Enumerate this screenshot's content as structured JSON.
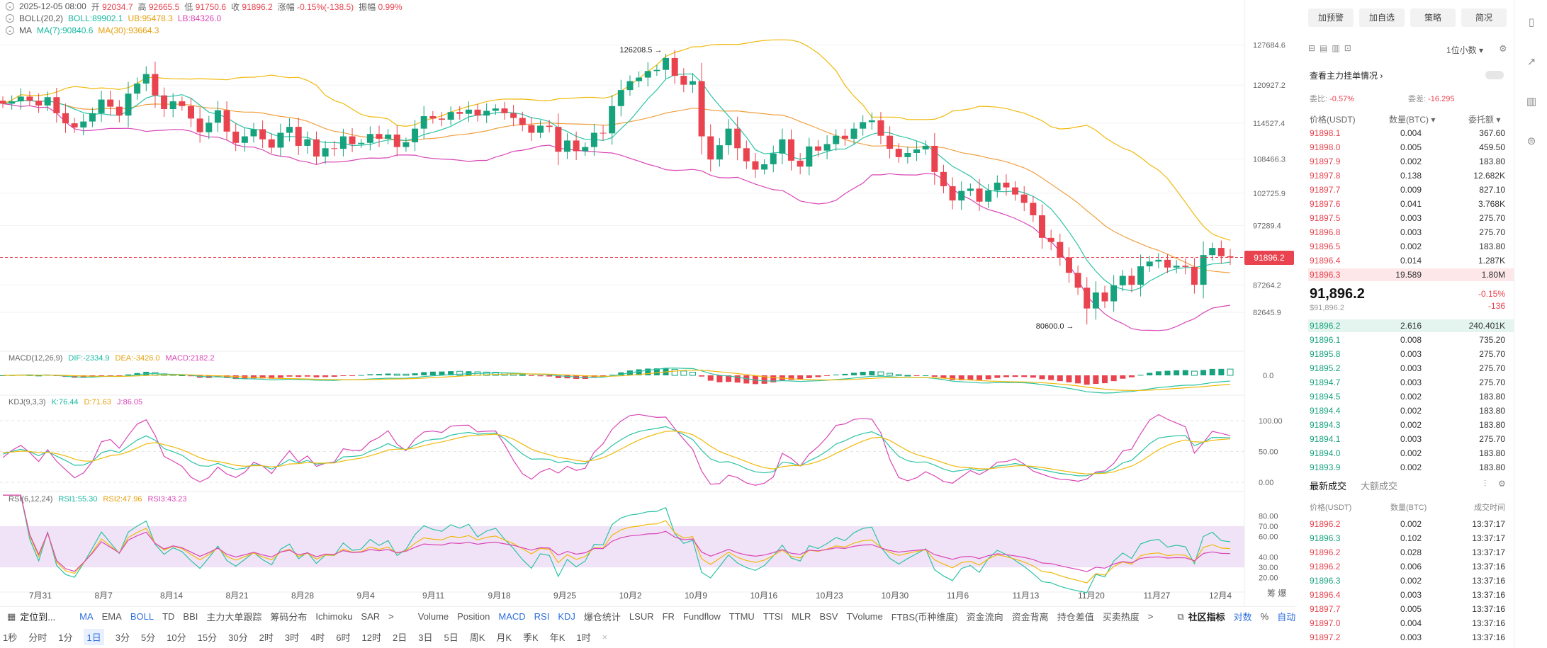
{
  "header": {
    "row1": {
      "datetime": "2025-12-05 08:00",
      "open_label": "开",
      "open": "92034.7",
      "high_label": "高",
      "high": "92665.5",
      "low_label": "低",
      "low": "91750.6",
      "close_label": "收",
      "close": "91896.2",
      "change_label": "涨幅",
      "change": "-0.15%(-138.5)",
      "amp_label": "振幅",
      "amp": "0.99%"
    },
    "row2": {
      "name": "BOLL(20,2)",
      "boll": "BOLL:89902.1",
      "ub": "UB:95478.3",
      "lb": "LB:84326.0"
    },
    "row3": {
      "name": "MA",
      "ma7": "MA(7):90840.6",
      "ma30": "MA(30):93664.3"
    }
  },
  "indicators": {
    "macd": {
      "name": "MACD(12,26,9)",
      "dif": "DIF:-2334.9",
      "dea": "DEA:-3426.0",
      "macd": "MACD:2182.2"
    },
    "kdj": {
      "name": "KDJ(9,3,3)",
      "k": "K:76.44",
      "d": "D:71.63",
      "j": "J:86.05"
    },
    "rsi": {
      "name": "RSI(6,12,24)",
      "rsi1": "RSI1:55.30",
      "rsi2": "RSI2:47.96",
      "rsi3": "RSI3:43.23"
    }
  },
  "colors": {
    "up": "#16a27d",
    "down": "#e8434e",
    "boll_mid": "#16b8a0",
    "boll_band": "#f0b90b",
    "ma": "#d946b5",
    "accent": "#2f6fdd"
  },
  "chart_data": {
    "type": "candlestick",
    "main": {
      "yticks": [
        "127684.6",
        "120927.2",
        "114527.4",
        "108466.3",
        "102725.9",
        "97289.4",
        "87264.2",
        "82645.9"
      ],
      "ylim": [
        78000,
        130500
      ],
      "current_price": "91896.2",
      "annotations": {
        "high": "126208.5",
        "low": "80600.0"
      },
      "xticks": [
        "7月31",
        "8月7",
        "8月14",
        "8月21",
        "8月28",
        "9月4",
        "9月11",
        "9月18",
        "9月25",
        "10月2",
        "10月9",
        "10月16",
        "10月23",
        "10月30",
        "11月6",
        "11月13",
        "11月20",
        "11月27",
        "12月4"
      ],
      "closes": [
        117800,
        118200,
        119000,
        118300,
        117500,
        118900,
        116200,
        114500,
        113800,
        114800,
        116200,
        118500,
        117300,
        115800,
        119500,
        121200,
        122800,
        119200,
        116900,
        118200,
        117400,
        115300,
        113000,
        114600,
        116700,
        113100,
        111200,
        112300,
        113500,
        111800,
        110400,
        112900,
        113900,
        110700,
        111800,
        108900,
        110300,
        110200,
        112300,
        111000,
        111200,
        112700,
        111900,
        112600,
        110500,
        111300,
        113600,
        115700,
        115300,
        115100,
        116400,
        116100,
        116800,
        115800,
        116600,
        117000,
        116200,
        115400,
        114200,
        112900,
        114100,
        113900,
        109700,
        111600,
        109800,
        110500,
        112900,
        112800,
        117400,
        120100,
        121600,
        122200,
        123300,
        123500,
        125500,
        122500,
        121000,
        121600,
        112300,
        108400,
        110800,
        113600,
        110300,
        108100,
        106700,
        107600,
        109400,
        111800,
        108200,
        107200,
        110600,
        109900,
        111000,
        112400,
        111900,
        113600,
        114700,
        115000,
        112400,
        110200,
        108800,
        109500,
        110100,
        110700,
        106300,
        103900,
        101500,
        103100,
        103500,
        101300,
        103200,
        104500,
        103700,
        102500,
        101100,
        99000,
        95200,
        94500,
        91900,
        89300,
        86800,
        83300,
        86000,
        84500,
        87200,
        88800,
        87300,
        90400,
        91200,
        91500,
        90200,
        90500,
        90300,
        87300,
        92300,
        93500,
        92100,
        91900
      ]
    },
    "macd": {
      "ylabel": "0.0"
    },
    "kdj": {
      "yticks": [
        "100.00",
        "50.00",
        "0.00"
      ]
    },
    "rsi": {
      "yticks": [
        "80.00",
        "70.00",
        "60.00",
        "40.00",
        "30.00",
        "20.00"
      ]
    }
  },
  "toolbar1": {
    "locate": "定位到...",
    "items": [
      "MA",
      "EMA",
      "BOLL",
      "TD",
      "BBI",
      "主力大单跟踪",
      "筹码分布",
      "Ichimoku",
      "SAR"
    ],
    "more": ">",
    "items2": [
      "Volume",
      "Position",
      "MACD",
      "RSI",
      "KDJ",
      "爆仓统计",
      "LSUR",
      "FR",
      "Fundflow",
      "TTMU",
      "TTSI",
      "MLR",
      "BSV",
      "TVolume",
      "FTBS(币种维度)",
      "资金流向",
      "资金背离",
      "持仓差值",
      "买卖热度"
    ],
    "community": "社区指标",
    "log": "对数",
    "pct": "%",
    "auto": "自动"
  },
  "toolbar2": {
    "intervals": [
      "1秒",
      "分时",
      "1分",
      "1日",
      "3分",
      "5分",
      "10分",
      "15分",
      "30分",
      "2时",
      "3时",
      "4时",
      "6时",
      "12时",
      "2日",
      "3日",
      "5日",
      "周K",
      "月K",
      "季K",
      "年K",
      "1时"
    ]
  },
  "xaxis_right": "筹 爆",
  "panel": {
    "buttons": [
      "加预警",
      "加自选",
      "策略",
      "简况"
    ],
    "precision": "1位小数",
    "main_order": "查看主力挂单情况",
    "ratio_label": "委比:",
    "ratio": "-0.57%",
    "diff_label": "委差:",
    "diff": "-16.295",
    "cols": {
      "price": "价格(USDT)",
      "qty": "数量(BTC)",
      "total": "委托额"
    },
    "asks": [
      [
        "91898.1",
        "0.004",
        "367.60"
      ],
      [
        "91898.0",
        "0.005",
        "459.50"
      ],
      [
        "91897.9",
        "0.002",
        "183.80"
      ],
      [
        "91897.8",
        "0.138",
        "12.682K"
      ],
      [
        "91897.7",
        "0.009",
        "827.10"
      ],
      [
        "91897.6",
        "0.041",
        "3.768K"
      ],
      [
        "91897.5",
        "0.003",
        "275.70"
      ],
      [
        "91896.8",
        "0.003",
        "275.70"
      ],
      [
        "91896.5",
        "0.002",
        "183.80"
      ],
      [
        "91896.4",
        "0.014",
        "1.287K"
      ],
      [
        "91896.3",
        "19.589",
        "1.80M"
      ]
    ],
    "last_price": "91,896.2",
    "last_usd": "$91,896.2",
    "last_change": "-0.15%",
    "last_diff": "-136",
    "bids": [
      [
        "91896.2",
        "2.616",
        "240.401K"
      ],
      [
        "91896.1",
        "0.008",
        "735.20"
      ],
      [
        "91895.8",
        "0.003",
        "275.70"
      ],
      [
        "91895.2",
        "0.003",
        "275.70"
      ],
      [
        "91894.7",
        "0.003",
        "275.70"
      ],
      [
        "91894.5",
        "0.002",
        "183.80"
      ],
      [
        "91894.4",
        "0.002",
        "183.80"
      ],
      [
        "91894.3",
        "0.002",
        "183.80"
      ],
      [
        "91894.1",
        "0.003",
        "275.70"
      ],
      [
        "91894.0",
        "0.002",
        "183.80"
      ],
      [
        "91893.9",
        "0.002",
        "183.80"
      ]
    ],
    "trades_tab1": "最新成交",
    "trades_tab2": "大额成交",
    "trade_cols": {
      "price": "价格(USDT)",
      "qty": "数量(BTC)",
      "time": "成交时间"
    },
    "trades": [
      [
        "91896.2",
        "0.002",
        "13:37:17",
        "d"
      ],
      [
        "91896.3",
        "0.102",
        "13:37:17",
        "u"
      ],
      [
        "91896.2",
        "0.028",
        "13:37:17",
        "d"
      ],
      [
        "91896.2",
        "0.006",
        "13:37:16",
        "d"
      ],
      [
        "91896.3",
        "0.002",
        "13:37:16",
        "u"
      ],
      [
        "91896.4",
        "0.003",
        "13:37:16",
        "d"
      ],
      [
        "91897.7",
        "0.005",
        "13:37:16",
        "d"
      ],
      [
        "91897.0",
        "0.004",
        "13:37:16",
        "d"
      ],
      [
        "91897.2",
        "0.003",
        "13:37:16",
        "d"
      ]
    ]
  }
}
